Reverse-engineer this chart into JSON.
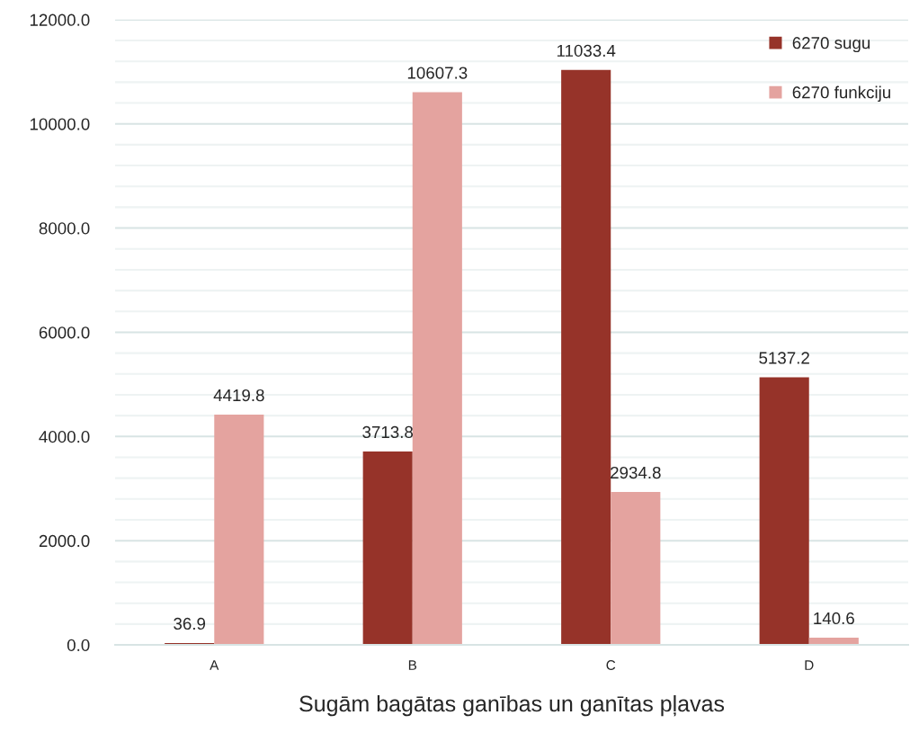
{
  "chart_data": {
    "type": "bar",
    "xlabel": "Sugām bagātas ganības un ganītas pļavas",
    "categories": [
      "A",
      "B",
      "C",
      "D"
    ],
    "series": [
      {
        "name": "6270 sugu",
        "color": "#963329",
        "values": [
          36.9,
          3713.8,
          11033.4,
          5137.2
        ]
      },
      {
        "name": "6270 funkciju",
        "color": "#e4a39f",
        "values": [
          4419.8,
          10607.3,
          2934.8,
          140.6
        ]
      }
    ],
    "ylim": [
      0,
      12000
    ],
    "yticks": [
      {
        "value": 0,
        "label": "0.0"
      },
      {
        "value": 400,
        "label": null
      },
      {
        "value": 800,
        "label": null
      },
      {
        "value": 1200,
        "label": null
      },
      {
        "value": 1600,
        "label": null
      },
      {
        "value": 2000,
        "label": "2000.0"
      },
      {
        "value": 2400,
        "label": null
      },
      {
        "value": 2800,
        "label": null
      },
      {
        "value": 3200,
        "label": null
      },
      {
        "value": 3600,
        "label": null
      },
      {
        "value": 4000,
        "label": "4000.0"
      },
      {
        "value": 4400,
        "label": null
      },
      {
        "value": 4800,
        "label": null
      },
      {
        "value": 5200,
        "label": null
      },
      {
        "value": 5600,
        "label": null
      },
      {
        "value": 6000,
        "label": "6000.0"
      },
      {
        "value": 6400,
        "label": null
      },
      {
        "value": 6800,
        "label": null
      },
      {
        "value": 7200,
        "label": null
      },
      {
        "value": 7600,
        "label": null
      },
      {
        "value": 8000,
        "label": "8000.0"
      },
      {
        "value": 8400,
        "label": null
      },
      {
        "value": 8800,
        "label": null
      },
      {
        "value": 9200,
        "label": null
      },
      {
        "value": 9600,
        "label": null
      },
      {
        "value": 10000,
        "label": "10000.0"
      },
      {
        "value": 10400,
        "label": null
      },
      {
        "value": 10800,
        "label": null
      },
      {
        "value": 11200,
        "label": null
      },
      {
        "value": 11600,
        "label": null
      },
      {
        "value": 12000,
        "label": "12000.0"
      }
    ],
    "grid": "y",
    "legend": "top right",
    "data_labels": true
  }
}
